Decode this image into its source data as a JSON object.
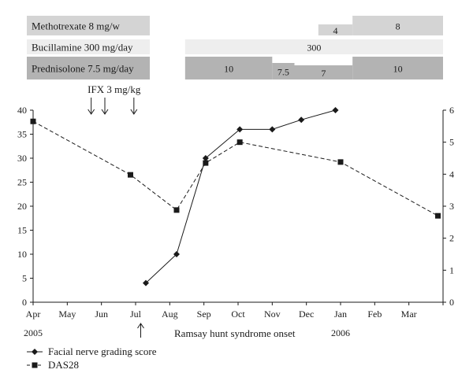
{
  "chart_data": {
    "type": "line",
    "x_tick_labels": [
      "Apr",
      "May",
      "Jun",
      "Jul",
      "Aug",
      "Sep",
      "Oct",
      "Nov",
      "Dec",
      "Jan",
      "Feb",
      "Mar"
    ],
    "year_labels": [
      {
        "label": "2005",
        "month_index": 0
      },
      {
        "label": "2006",
        "month_index": 9
      }
    ],
    "x_range_months": [
      0,
      12
    ],
    "left_axis": {
      "range": [
        0,
        40
      ],
      "ticks": [
        0,
        5,
        10,
        15,
        20,
        25,
        30,
        35,
        40
      ]
    },
    "right_axis": {
      "range": [
        0,
        6
      ],
      "ticks": [
        0,
        1,
        2,
        3,
        4,
        5,
        6
      ]
    },
    "series": [
      {
        "name": "Facial nerve grading score",
        "axis": "left",
        "marker": "diamond",
        "line_style": "solid",
        "points": [
          {
            "x": 3.3,
            "y": 4
          },
          {
            "x": 4.2,
            "y": 10
          },
          {
            "x": 5.05,
            "y": 30
          },
          {
            "x": 6.05,
            "y": 36
          },
          {
            "x": 7.0,
            "y": 36
          },
          {
            "x": 7.85,
            "y": 38
          },
          {
            "x": 8.85,
            "y": 40
          }
        ]
      },
      {
        "name": "DAS28",
        "axis": "right",
        "marker": "square",
        "line_style": "dashed",
        "points": [
          {
            "x": 0.0,
            "y": 5.65
          },
          {
            "x": 2.85,
            "y": 3.98
          },
          {
            "x": 4.2,
            "y": 2.88
          },
          {
            "x": 5.05,
            "y": 4.35
          },
          {
            "x": 6.05,
            "y": 5.0
          },
          {
            "x": 9.0,
            "y": 4.38
          },
          {
            "x": 11.85,
            "y": 2.7
          }
        ]
      }
    ],
    "medications": [
      {
        "label": "Methotrexate 8 mg/w",
        "color": "#d4d4d4",
        "segments": [
          {
            "start": 8.35,
            "end": 9.35,
            "value": "4",
            "level": "low"
          },
          {
            "start": 9.35,
            "end": 12.0,
            "value": "8",
            "level": "high"
          }
        ]
      },
      {
        "label": "Bucillamine 300 mg/day",
        "color": "#eeeeee",
        "segments": [
          {
            "start": 4.45,
            "end": 12.0,
            "value": "300",
            "level": "full"
          }
        ]
      },
      {
        "label": "Prednisolone 7.5 mg/day",
        "color": "#b3b3b3",
        "segments": [
          {
            "start": 4.45,
            "end": 7.0,
            "value": "10",
            "level": "high"
          },
          {
            "start": 7.0,
            "end": 7.65,
            "value": "7.5",
            "level": "mid"
          },
          {
            "start": 7.65,
            "end": 9.35,
            "value": "7",
            "level": "low"
          },
          {
            "start": 9.35,
            "end": 12.0,
            "value": "10",
            "level": "high"
          }
        ]
      }
    ],
    "infusion": {
      "label": "IFX 3 mg/kg",
      "arrow_months": [
        1.7,
        2.1,
        2.95
      ]
    },
    "onset": {
      "label": "Ramsay hunt syndrome onset",
      "month": 3.15
    },
    "legend": [
      {
        "label": "Facial nerve grading score",
        "marker": "diamond",
        "line_style": "solid"
      },
      {
        "label": "DAS28",
        "marker": "square",
        "line_style": "dashed"
      }
    ],
    "legend_position": "bottom-left",
    "grid": false,
    "colors": {
      "line": "#1a1a1a"
    }
  }
}
